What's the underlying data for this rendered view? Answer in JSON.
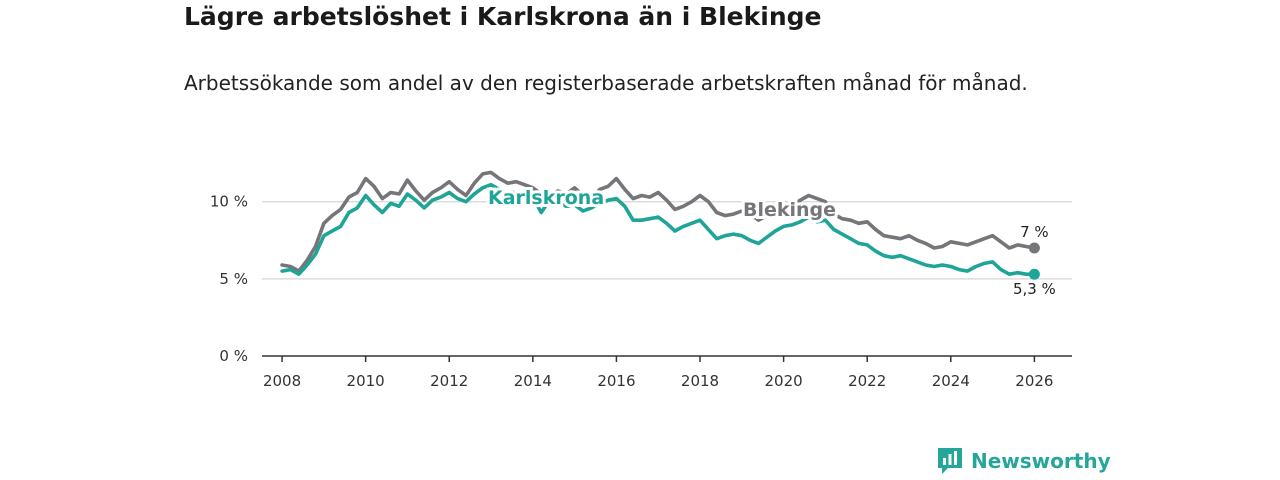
{
  "title": "Lägre arbetslöshet i Karlskrona än i Blekinge",
  "subtitle": "Arbetssökande som andel av den registerbaserade arbetskraften månad för månad.",
  "brand": {
    "name": "Newsworthy",
    "icon": "newsworthy-bar-chart-icon",
    "color": "#26a69a"
  },
  "chart_data": {
    "type": "line",
    "title": "Lägre arbetslöshet i Karlskrona än i Blekinge",
    "xlabel": "",
    "ylabel": "",
    "xlim": [
      2007.5,
      2026.9
    ],
    "ylim": [
      0,
      14
    ],
    "grid": true,
    "y_ticks": [
      0,
      5,
      10
    ],
    "y_tick_labels": [
      "0 %",
      "5 %",
      "10 %"
    ],
    "x_ticks": [
      2008,
      2010,
      2012,
      2014,
      2016,
      2018,
      2020,
      2022,
      2024,
      2026
    ],
    "x_tick_labels": [
      "2008",
      "2010",
      "2012",
      "2014",
      "2016",
      "2018",
      "2020",
      "2022",
      "2024",
      "2026"
    ],
    "series": [
      {
        "name": "Blekinge",
        "color": "#75757a",
        "end_label": "7 %",
        "x": [
          2008.0,
          2008.2,
          2008.4,
          2008.6,
          2008.8,
          2009.0,
          2009.2,
          2009.4,
          2009.6,
          2009.8,
          2010.0,
          2010.2,
          2010.4,
          2010.6,
          2010.8,
          2011.0,
          2011.2,
          2011.4,
          2011.6,
          2011.8,
          2012.0,
          2012.2,
          2012.4,
          2012.6,
          2012.8,
          2013.0,
          2013.2,
          2013.4,
          2013.6,
          2013.8,
          2014.0,
          2014.2,
          2014.4,
          2014.6,
          2014.8,
          2015.0,
          2015.2,
          2015.4,
          2015.6,
          2015.8,
          2016.0,
          2016.2,
          2016.4,
          2016.6,
          2016.8,
          2017.0,
          2017.2,
          2017.4,
          2017.6,
          2017.8,
          2018.0,
          2018.2,
          2018.4,
          2018.6,
          2018.8,
          2019.0,
          2019.2,
          2019.4,
          2019.6,
          2019.8,
          2020.0,
          2020.2,
          2020.4,
          2020.6,
          2020.8,
          2021.0,
          2021.2,
          2021.4,
          2021.6,
          2021.8,
          2022.0,
          2022.2,
          2022.4,
          2022.6,
          2022.8,
          2023.0,
          2023.2,
          2023.4,
          2023.6,
          2023.8,
          2024.0,
          2024.2,
          2024.4,
          2024.6,
          2024.8,
          2025.0,
          2025.2,
          2025.4,
          2025.6,
          2025.8,
          2026.0
        ],
        "y": [
          5.9,
          5.8,
          5.5,
          6.2,
          7.1,
          8.6,
          9.1,
          9.5,
          10.3,
          10.6,
          11.5,
          11.0,
          10.2,
          10.6,
          10.5,
          11.4,
          10.7,
          10.1,
          10.6,
          10.9,
          11.3,
          10.8,
          10.4,
          11.2,
          11.8,
          11.9,
          11.5,
          11.2,
          11.3,
          11.1,
          10.9,
          10.5,
          10.4,
          10.7,
          10.5,
          10.9,
          10.4,
          10.1,
          10.8,
          11.0,
          11.5,
          10.8,
          10.2,
          10.4,
          10.3,
          10.6,
          10.1,
          9.5,
          9.7,
          10.0,
          10.4,
          10.0,
          9.3,
          9.1,
          9.2,
          9.4,
          9.2,
          8.8,
          9.1,
          9.6,
          9.7,
          9.8,
          10.1,
          10.4,
          10.2,
          10.0,
          9.2,
          8.9,
          8.8,
          8.6,
          8.7,
          8.2,
          7.8,
          7.7,
          7.6,
          7.8,
          7.5,
          7.3,
          7.0,
          7.1,
          7.4,
          7.3,
          7.2,
          7.4,
          7.6,
          7.8,
          7.4,
          7.0,
          7.2,
          7.1,
          7.0
        ]
      },
      {
        "name": "Karlskrona",
        "color": "#1ea597",
        "end_label": "5,3 %",
        "x": [
          2008.0,
          2008.2,
          2008.4,
          2008.6,
          2008.8,
          2009.0,
          2009.2,
          2009.4,
          2009.6,
          2009.8,
          2010.0,
          2010.2,
          2010.4,
          2010.6,
          2010.8,
          2011.0,
          2011.2,
          2011.4,
          2011.6,
          2011.8,
          2012.0,
          2012.2,
          2012.4,
          2012.6,
          2012.8,
          2013.0,
          2013.2,
          2013.4,
          2013.6,
          2013.8,
          2014.0,
          2014.2,
          2014.4,
          2014.6,
          2014.8,
          2015.0,
          2015.2,
          2015.4,
          2015.6,
          2015.8,
          2016.0,
          2016.2,
          2016.4,
          2016.6,
          2016.8,
          2017.0,
          2017.2,
          2017.4,
          2017.6,
          2017.8,
          2018.0,
          2018.2,
          2018.4,
          2018.6,
          2018.8,
          2019.0,
          2019.2,
          2019.4,
          2019.6,
          2019.8,
          2020.0,
          2020.2,
          2020.4,
          2020.6,
          2020.8,
          2021.0,
          2021.2,
          2021.4,
          2021.6,
          2021.8,
          2022.0,
          2022.2,
          2022.4,
          2022.6,
          2022.8,
          2023.0,
          2023.2,
          2023.4,
          2023.6,
          2023.8,
          2024.0,
          2024.2,
          2024.4,
          2024.6,
          2024.8,
          2025.0,
          2025.2,
          2025.4,
          2025.6,
          2025.8,
          2026.0
        ],
        "y": [
          5.5,
          5.6,
          5.3,
          5.9,
          6.6,
          7.8,
          8.1,
          8.4,
          9.3,
          9.6,
          10.4,
          9.8,
          9.3,
          9.9,
          9.7,
          10.5,
          10.1,
          9.6,
          10.1,
          10.3,
          10.6,
          10.2,
          10.0,
          10.5,
          10.9,
          11.1,
          10.8,
          10.6,
          10.6,
          10.4,
          10.3,
          9.3,
          10.1,
          10.0,
          9.7,
          9.8,
          9.4,
          9.6,
          9.9,
          10.1,
          10.2,
          9.7,
          8.8,
          8.8,
          8.9,
          9.0,
          8.6,
          8.1,
          8.4,
          8.6,
          8.8,
          8.2,
          7.6,
          7.8,
          7.9,
          7.8,
          7.5,
          7.3,
          7.7,
          8.1,
          8.4,
          8.5,
          8.7,
          9.0,
          8.7,
          8.8,
          8.2,
          7.9,
          7.6,
          7.3,
          7.2,
          6.8,
          6.5,
          6.4,
          6.5,
          6.3,
          6.1,
          5.9,
          5.8,
          5.9,
          5.8,
          5.6,
          5.5,
          5.8,
          6.0,
          6.1,
          5.6,
          5.3,
          5.4,
          5.3,
          5.3
        ]
      }
    ]
  }
}
